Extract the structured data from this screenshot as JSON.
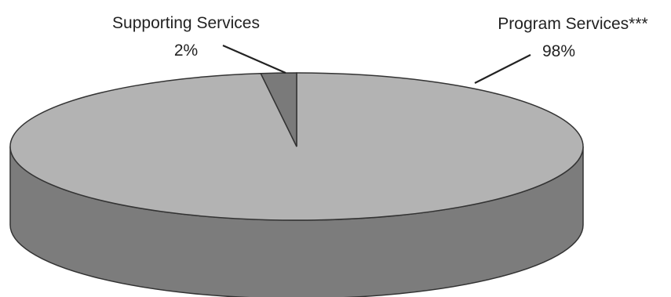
{
  "chart_data": {
    "type": "pie",
    "style": "3d",
    "slices": [
      {
        "label": "Program Services***",
        "value": 98,
        "value_label": "98%",
        "color": "#b3b3b3",
        "side_color": "#7c7c7c"
      },
      {
        "label": "Supporting Services",
        "value": 2,
        "value_label": "2%",
        "color": "#7a7a7a",
        "side_color": "#5e5e5e"
      }
    ],
    "legend": "none"
  }
}
